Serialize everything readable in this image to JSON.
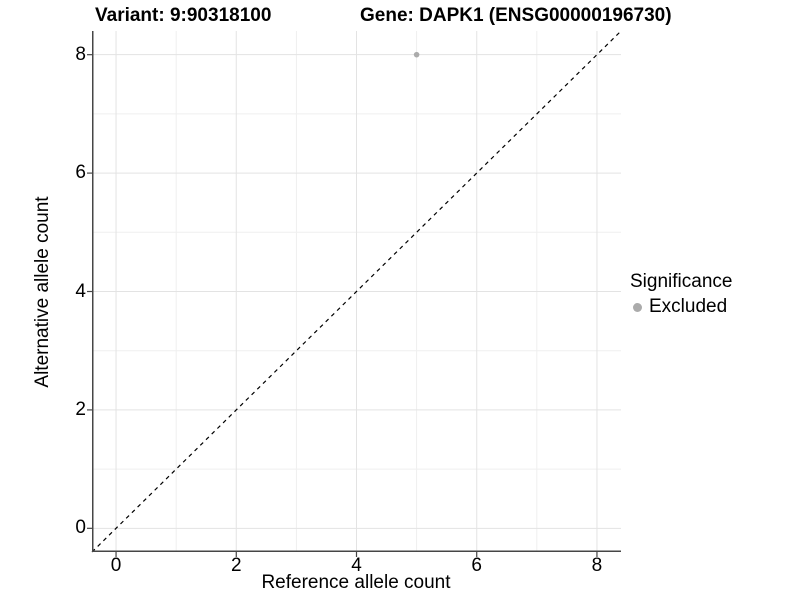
{
  "chart_data": {
    "type": "scatter",
    "title_left": "Variant: 9:90318100",
    "title_right": "Gene: DAPK1 (ENSG00000196730)",
    "xlabel": "Reference allele count",
    "ylabel": "Alternative allele count",
    "xlim": [
      -0.4,
      8.4
    ],
    "ylim": [
      -0.4,
      8.4
    ],
    "x_ticks": [
      0,
      2,
      4,
      6,
      8
    ],
    "y_ticks": [
      0,
      2,
      4,
      6,
      8
    ],
    "x_minor_ticks": [
      1,
      3,
      5,
      7
    ],
    "y_minor_ticks": [
      1,
      3,
      5,
      7
    ],
    "grid": true,
    "series": [
      {
        "name": "Excluded",
        "marker": "circle",
        "color": "#ababab",
        "points": [
          {
            "x": 5,
            "y": 8
          }
        ]
      }
    ],
    "reference_line": {
      "type": "identity",
      "from": [
        -0.4,
        -0.4
      ],
      "to": [
        8.4,
        8.4
      ],
      "style": "dashed",
      "color": "#000000"
    },
    "legend": {
      "title": "Significance",
      "position": "right",
      "items": [
        {
          "label": "Excluded",
          "color": "#ababab",
          "marker": "circle"
        }
      ]
    }
  },
  "colors": {
    "background": "#ffffff",
    "axis_line": "#464646",
    "tick_mark": "#464646",
    "grid_major": "#e3e3e3",
    "grid_minor": "#efefef",
    "point": "#ababab",
    "reference_line": "#000000",
    "text": "#000000"
  }
}
